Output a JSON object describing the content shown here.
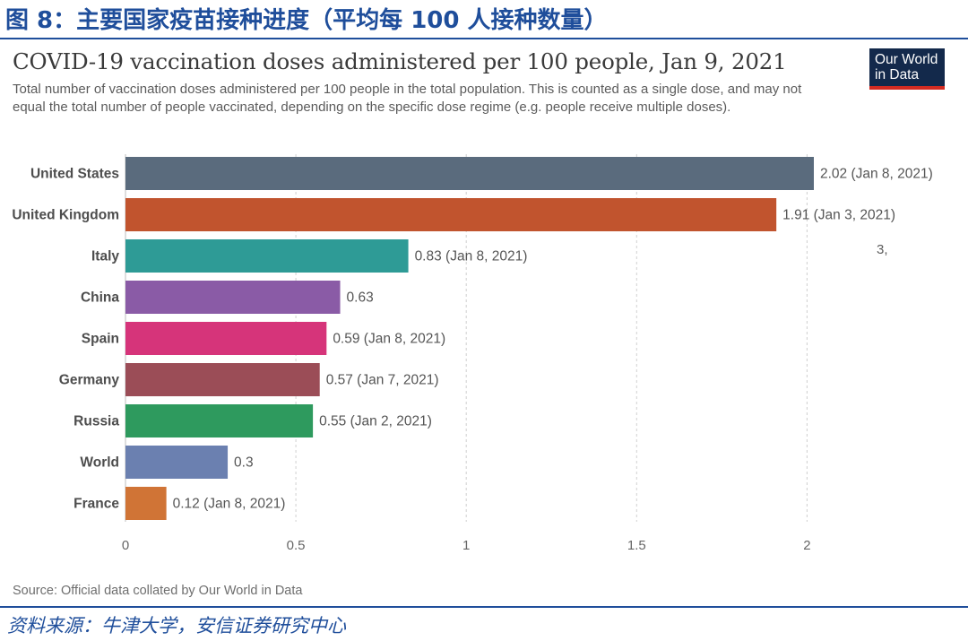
{
  "figure": {
    "title": "图 8：主要国家疫苗接种进度（平均每 100 人接种数量）",
    "footer_source": "资料来源：牛津大学，安信证券研究中心"
  },
  "chart_data": {
    "type": "bar",
    "orientation": "horizontal",
    "title": "COVID-19 vaccination doses administered per 100 people, Jan 9, 2021",
    "subtitle": "Total number of vaccination doses administered per 100 people in the total population. This is counted as a single dose, and may not equal the total number of people vaccinated, depending on the specific dose regime (e.g. people receive multiple doses).",
    "source": "Source: Official data collated by Our World in Data",
    "logo": [
      "Our World",
      "in Data"
    ],
    "categories": [
      "United States",
      "United Kingdom",
      "Italy",
      "China",
      "Spain",
      "Germany",
      "Russia",
      "World",
      "France"
    ],
    "values": [
      2.02,
      1.91,
      0.83,
      0.63,
      0.59,
      0.57,
      0.55,
      0.3,
      0.12
    ],
    "labels": [
      "2.02 (Jan 8, 2021)",
      "1.91 (Jan 3, 2021)",
      "0.83 (Jan 8, 2021)",
      "0.63",
      "0.59 (Jan 8, 2021)",
      "0.57 (Jan 7, 2021)",
      "0.55 (Jan 2, 2021)",
      "0.3",
      "0.12 (Jan 8, 2021)"
    ],
    "colors": [
      "#5a6b7d",
      "#c1542e",
      "#2e9b96",
      "#8a5ba6",
      "#d6347a",
      "#9b4d57",
      "#2e9a5e",
      "#6b80b0",
      "#d07436"
    ],
    "x_ticks": [
      0,
      0.5,
      1,
      1.5,
      2
    ],
    "x_tick_labels": [
      "0",
      "0.5",
      "1",
      "1.5",
      "2"
    ],
    "xlim": [
      0,
      2.02
    ],
    "xlabel": "",
    "ylabel": "",
    "grid": "vertical dashed"
  },
  "artifact_text": "3,"
}
